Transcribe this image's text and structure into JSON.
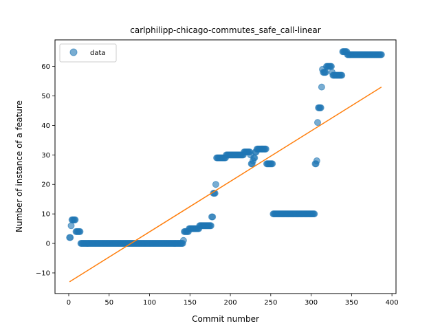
{
  "chart_data": {
    "type": "scatter",
    "title": "carlphilipp-chicago-commutes_safe_call-linear",
    "xlabel": "Commit number",
    "ylabel": "Number of instance of a feature",
    "xlim": [
      -17,
      405
    ],
    "ylim": [
      -17,
      69
    ],
    "xticks": [
      0,
      50,
      100,
      150,
      200,
      250,
      300,
      350,
      400
    ],
    "yticks": [
      -10,
      0,
      10,
      20,
      30,
      40,
      50,
      60
    ],
    "legend": {
      "position": "top-left",
      "entries": [
        "data"
      ]
    },
    "colors": {
      "data": "#1f77b4",
      "fit": "#ff7f0e"
    },
    "segments": [
      {
        "x_start": 1,
        "x_end": 2,
        "y": 2
      },
      {
        "x_start": 3,
        "x_end": 3,
        "y": 6
      },
      {
        "x_start": 4,
        "x_end": 8,
        "y": 8
      },
      {
        "x_start": 9,
        "x_end": 14,
        "y": 4
      },
      {
        "x_start": 15,
        "x_end": 141,
        "y": 0
      },
      {
        "x_start": 142,
        "x_end": 142,
        "y": 1
      },
      {
        "x_start": 143,
        "x_end": 148,
        "y": 4
      },
      {
        "x_start": 149,
        "x_end": 161,
        "y": 5
      },
      {
        "x_start": 162,
        "x_end": 176,
        "y": 6
      },
      {
        "x_start": 177,
        "x_end": 178,
        "y": 9
      },
      {
        "x_start": 179,
        "x_end": 181,
        "y": 17
      },
      {
        "x_start": 182,
        "x_end": 182,
        "y": 20
      },
      {
        "x_start": 183,
        "x_end": 194,
        "y": 29
      },
      {
        "x_start": 195,
        "x_end": 216,
        "y": 30
      },
      {
        "x_start": 217,
        "x_end": 224,
        "y": 31
      },
      {
        "x_start": 225,
        "x_end": 225,
        "y": 30
      },
      {
        "x_start": 226,
        "x_end": 227,
        "y": 27
      },
      {
        "x_start": 228,
        "x_end": 228,
        "y": 28
      },
      {
        "x_start": 229,
        "x_end": 230,
        "y": 29
      },
      {
        "x_start": 231,
        "x_end": 232,
        "y": 31
      },
      {
        "x_start": 233,
        "x_end": 244,
        "y": 32
      },
      {
        "x_start": 245,
        "x_end": 252,
        "y": 27
      },
      {
        "x_start": 253,
        "x_end": 304,
        "y": 10
      },
      {
        "x_start": 305,
        "x_end": 306,
        "y": 27
      },
      {
        "x_start": 307,
        "x_end": 307,
        "y": 28
      },
      {
        "x_start": 308,
        "x_end": 308,
        "y": 41
      },
      {
        "x_start": 309,
        "x_end": 312,
        "y": 46
      },
      {
        "x_start": 313,
        "x_end": 313,
        "y": 53
      },
      {
        "x_start": 314,
        "x_end": 314,
        "y": 59
      },
      {
        "x_start": 315,
        "x_end": 318,
        "y": 58
      },
      {
        "x_start": 319,
        "x_end": 325,
        "y": 60
      },
      {
        "x_start": 326,
        "x_end": 326,
        "y": 58
      },
      {
        "x_start": 327,
        "x_end": 338,
        "y": 57
      },
      {
        "x_start": 339,
        "x_end": 344,
        "y": 65
      },
      {
        "x_start": 345,
        "x_end": 387,
        "y": 64
      }
    ],
    "fit_line": {
      "x": [
        1,
        387
      ],
      "y": [
        -13,
        53
      ]
    }
  }
}
